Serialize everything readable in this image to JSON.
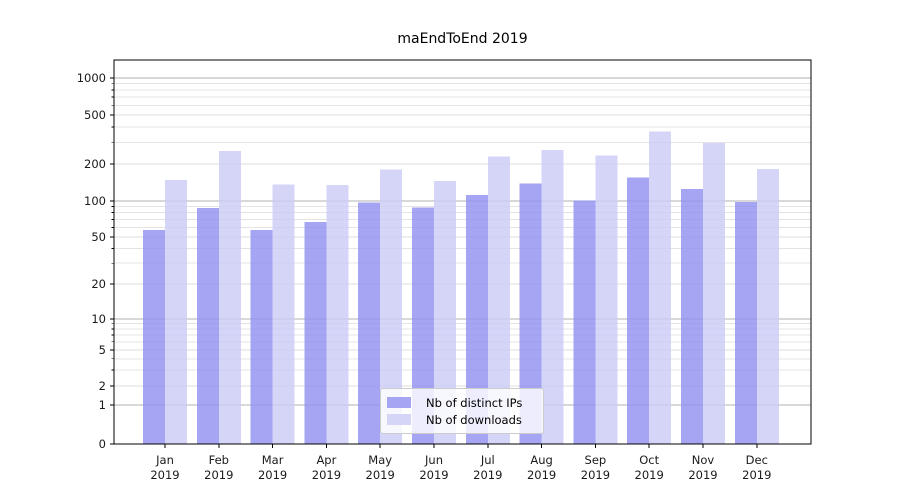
{
  "chart_data": {
    "type": "bar",
    "title": "maEndToEnd 2019",
    "categories": [
      "Jan",
      "Feb",
      "Mar",
      "Apr",
      "May",
      "Jun",
      "Jul",
      "Aug",
      "Sep",
      "Oct",
      "Nov",
      "Dec"
    ],
    "year_label": "2019",
    "series": [
      {
        "name": "Nb of distinct IPs",
        "color": "#9191f0",
        "values": [
          57,
          87,
          57,
          67,
          97,
          88,
          112,
          139,
          101,
          156,
          125,
          98
        ]
      },
      {
        "name": "Nb of downloads",
        "color": "#ccccf6",
        "values": [
          148,
          255,
          136,
          135,
          180,
          146,
          230,
          260,
          235,
          366,
          295,
          182
        ]
      }
    ],
    "bar_alpha": 0.82,
    "yscale": "symlog",
    "yticks": [
      0,
      1,
      2,
      5,
      10,
      20,
      50,
      100,
      200,
      500,
      1000
    ],
    "ylim": [
      0,
      1400
    ],
    "xlabel": "",
    "ylabel": "",
    "grid": true,
    "legend_position": "lower center",
    "colors": {
      "major_grid": "#b0b0b0",
      "minor_grid": "#e4e4e4",
      "labeled_minor_grid": "#dcdcdc",
      "spine": "#000000",
      "tick_label": "#1a1a1a"
    }
  }
}
